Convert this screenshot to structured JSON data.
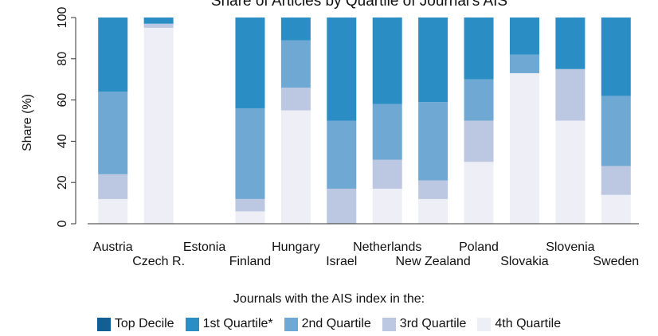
{
  "chart_data": {
    "type": "bar",
    "stacked": true,
    "title": "Share of Articles by Quartile of Journal's AIS",
    "ylabel": "Share (%)",
    "xlabel": "",
    "ylim": [
      0,
      100
    ],
    "yticks": [
      0,
      20,
      40,
      60,
      80,
      100
    ],
    "grid": false,
    "legend_position": "bottom",
    "categories": [
      "Austria",
      "Czech R.",
      "Estonia",
      "Finland",
      "Hungary",
      "Israel",
      "Netherlands",
      "New Zealand",
      "Poland",
      "Slovakia",
      "Slovenia",
      "Sweden"
    ],
    "series": [
      {
        "name": "4th Quartile",
        "color": "#eeeef6",
        "values": [
          12,
          95,
          0,
          6,
          55,
          0,
          17,
          12,
          30,
          73,
          50,
          14
        ]
      },
      {
        "name": "3rd Quartile",
        "color": "#bcc7e2",
        "values": [
          12,
          2,
          0,
          6,
          11,
          17,
          14,
          9,
          20,
          0,
          25,
          14
        ]
      },
      {
        "name": "2nd Quartile",
        "color": "#6fa8d2",
        "values": [
          40,
          0,
          0,
          44,
          23,
          33,
          27,
          38,
          20,
          9,
          0,
          34
        ]
      },
      {
        "name": "1st Quartile*",
        "color": "#2a8ec4",
        "values": [
          36,
          3,
          0,
          44,
          11,
          50,
          42,
          41,
          30,
          18,
          25,
          38
        ]
      },
      {
        "name": "Top Decile",
        "color": "#135f91",
        "values": [
          0,
          0,
          0,
          0,
          0,
          0,
          0,
          0,
          0,
          0,
          0,
          0
        ]
      }
    ]
  },
  "legend": {
    "title": "Journals with the AIS index in the:",
    "items": [
      {
        "name": "Top Decile",
        "color": "#135f91"
      },
      {
        "name": "1st Quartile*",
        "color": "#2a8ec4"
      },
      {
        "name": "2nd Quartile",
        "color": "#6fa8d2"
      },
      {
        "name": "3rd Quartile",
        "color": "#bcc7e2"
      },
      {
        "name": "4th Quartile",
        "color": "#eeeef6"
      }
    ]
  }
}
